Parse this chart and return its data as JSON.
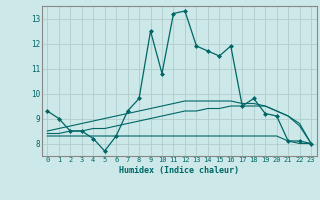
{
  "title": "",
  "xlabel": "Humidex (Indice chaleur)",
  "ylabel": "",
  "bg_color": "#cce8e8",
  "grid_color": "#b0cccc",
  "line_color": "#006666",
  "xlim": [
    -0.5,
    23.5
  ],
  "ylim": [
    7.5,
    13.5
  ],
  "yticks": [
    8,
    9,
    10,
    11,
    12,
    13
  ],
  "xticks": [
    0,
    1,
    2,
    3,
    4,
    5,
    6,
    7,
    8,
    9,
    10,
    11,
    12,
    13,
    14,
    15,
    16,
    17,
    18,
    19,
    20,
    21,
    22,
    23
  ],
  "series": [
    [
      9.3,
      9.0,
      8.5,
      8.5,
      8.2,
      7.7,
      8.3,
      9.3,
      9.8,
      12.5,
      10.8,
      13.2,
      13.3,
      11.9,
      11.7,
      11.5,
      11.9,
      9.5,
      9.8,
      9.2,
      9.1,
      8.1,
      8.1,
      8.0
    ],
    [
      8.3,
      8.3,
      8.3,
      8.3,
      8.3,
      8.3,
      8.3,
      8.3,
      8.3,
      8.3,
      8.3,
      8.3,
      8.3,
      8.3,
      8.3,
      8.3,
      8.3,
      8.3,
      8.3,
      8.3,
      8.3,
      8.1,
      8.0,
      8.0
    ],
    [
      8.4,
      8.4,
      8.5,
      8.5,
      8.6,
      8.6,
      8.7,
      8.8,
      8.9,
      9.0,
      9.1,
      9.2,
      9.3,
      9.3,
      9.4,
      9.4,
      9.5,
      9.5,
      9.5,
      9.5,
      9.3,
      9.1,
      8.7,
      8.0
    ],
    [
      8.5,
      8.6,
      8.7,
      8.8,
      8.9,
      9.0,
      9.1,
      9.2,
      9.3,
      9.4,
      9.5,
      9.6,
      9.7,
      9.7,
      9.7,
      9.7,
      9.7,
      9.6,
      9.6,
      9.5,
      9.3,
      9.1,
      8.8,
      8.0
    ]
  ]
}
